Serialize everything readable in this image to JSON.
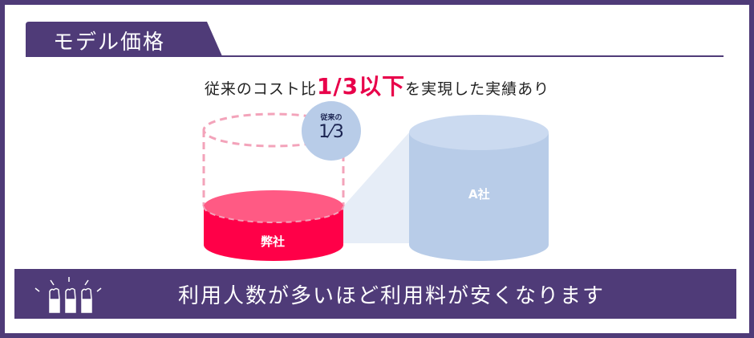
{
  "section_title": "モデル価格",
  "headline": {
    "prefix": "従来のコスト比",
    "emphasis": "1/3以下",
    "suffix": "を実現した実績あり"
  },
  "figure": {
    "our_label": "弊社",
    "competitor_label": "A社",
    "badge_top": "従来の",
    "badge_fraction": "1⁄3"
  },
  "banner": {
    "text": "利用人数が多いほど利用料が安くなります",
    "icon": "raised-hands-icon"
  },
  "colors": {
    "brand_purple": "#4f3b78",
    "accent_red": "#ff0048",
    "light_blue": "#b8cce8"
  }
}
